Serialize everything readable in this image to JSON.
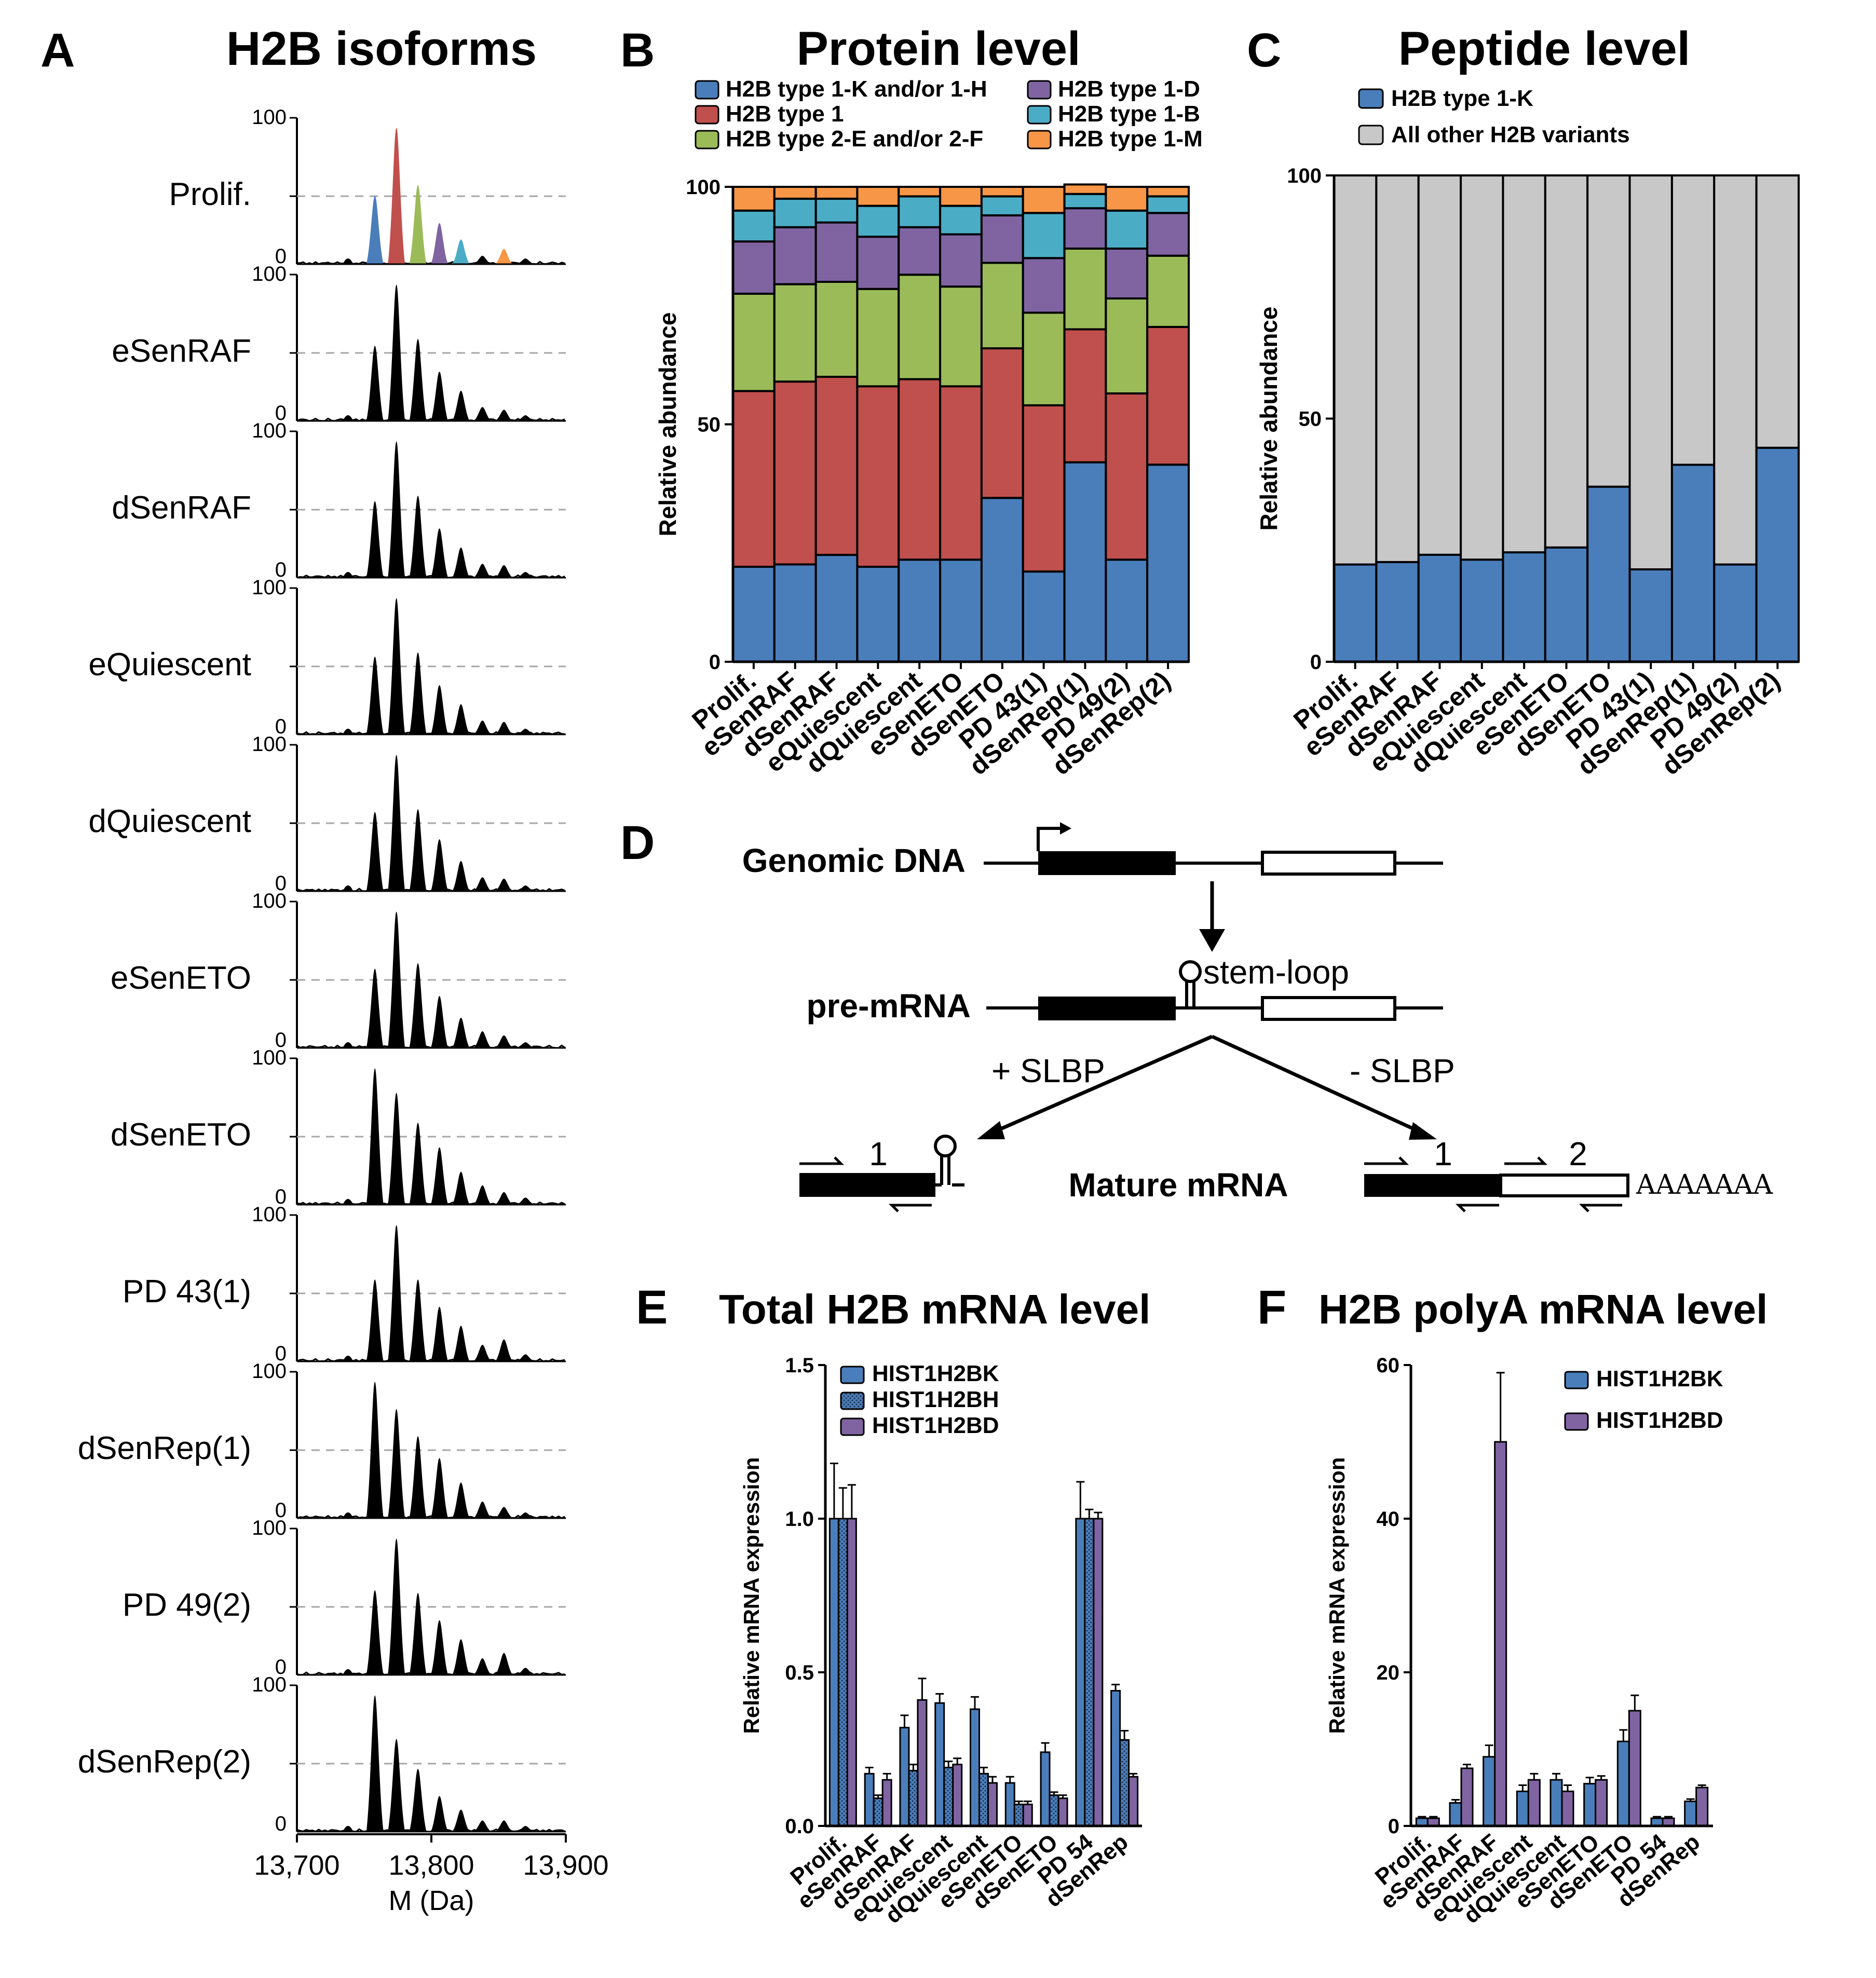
{
  "colors": {
    "blue": "#4a7ebb",
    "red": "#c0504d",
    "green": "#9bbb59",
    "purple": "#8064a2",
    "cyan": "#4bacc6",
    "orange": "#f79646",
    "gray": "#c8c8c8",
    "black": "#000000",
    "dash": "#a6a6a6"
  },
  "chart_data": [
    {
      "id": "A",
      "type": "line",
      "panel_label": "A",
      "title": "H2B isoforms",
      "xlabel": "M (Da)",
      "xlim": [
        13700,
        13900
      ],
      "xticks": [
        "13,700",
        "13,800",
        "13,900"
      ],
      "ytick_top": "100",
      "ytick_bottom": "0",
      "peak_masses": [
        13758,
        13774,
        13790,
        13806,
        13822,
        13838,
        13854,
        13870
      ],
      "peak_colors": [
        "blue",
        "red",
        "green",
        "purple",
        "cyan",
        "black",
        "orange",
        "black"
      ],
      "series": [
        {
          "name": "Prolif.",
          "colored": true,
          "heights": [
            50,
            100,
            58,
            30,
            18,
            6,
            11,
            4
          ]
        },
        {
          "name": "eSenRAF",
          "heights": [
            55,
            100,
            60,
            36,
            22,
            10,
            8,
            4
          ]
        },
        {
          "name": "dSenRAF",
          "heights": [
            56,
            100,
            60,
            36,
            22,
            10,
            9,
            4
          ]
        },
        {
          "name": "eQuiescent",
          "heights": [
            57,
            100,
            60,
            36,
            22,
            10,
            9,
            4
          ]
        },
        {
          "name": "dQuiescent",
          "heights": [
            58,
            100,
            60,
            38,
            22,
            10,
            9,
            4
          ]
        },
        {
          "name": "eSenETO",
          "heights": [
            58,
            100,
            62,
            38,
            22,
            12,
            9,
            4
          ]
        },
        {
          "name": "dSenETO",
          "heights": [
            100,
            82,
            60,
            42,
            24,
            14,
            9,
            5
          ]
        },
        {
          "name": "PD 43(1)",
          "heights": [
            60,
            100,
            60,
            40,
            26,
            12,
            16,
            5
          ]
        },
        {
          "name": "dSenRep(1)",
          "heights": [
            100,
            80,
            60,
            44,
            26,
            12,
            8,
            4
          ]
        },
        {
          "name": "PD 49(2)",
          "heights": [
            62,
            100,
            60,
            40,
            26,
            12,
            16,
            5
          ]
        },
        {
          "name": "dSenRep(2)",
          "heights": [
            100,
            68,
            46,
            26,
            16,
            8,
            8,
            4
          ]
        }
      ]
    },
    {
      "id": "B",
      "type": "bar",
      "stacked": true,
      "panel_label": "B",
      "title": "Protein level",
      "ylabel": "Relative abundance",
      "ylim": [
        0,
        100
      ],
      "yticks": [
        0,
        50,
        100
      ],
      "categories": [
        "Prolif.",
        "eSenRAF",
        "dSenRAF",
        "eQuiescent",
        "dQuiescent",
        "eSenETO",
        "dSenETO",
        "PD 43(1)",
        "dSenRep(1)",
        "PD 49(2)",
        "dSenRep(2)"
      ],
      "series": [
        {
          "name": "H2B type 1-K and/or 1-H",
          "color": "blue",
          "values": [
            20,
            20.5,
            22.5,
            20,
            21.5,
            21.5,
            34.5,
            19,
            42,
            21.5,
            41.5
          ]
        },
        {
          "name": "H2B type 1",
          "color": "red",
          "values": [
            37,
            38.5,
            37.5,
            38,
            38,
            36.5,
            31.5,
            35,
            28,
            35,
            29
          ]
        },
        {
          "name": "H2B type 2-E and/or 2-F",
          "color": "green",
          "values": [
            20.5,
            20.5,
            20,
            20.5,
            22,
            21,
            18,
            19.5,
            17,
            20,
            15
          ]
        },
        {
          "name": "H2B type 1-D",
          "color": "purple",
          "values": [
            11,
            12,
            12.5,
            11,
            10,
            11,
            10,
            11.5,
            8.5,
            10.5,
            9
          ]
        },
        {
          "name": "H2B type 1-B",
          "color": "cyan",
          "values": [
            6.5,
            6,
            5,
            6.5,
            6.5,
            6,
            4,
            9.5,
            3,
            8,
            3.5
          ]
        },
        {
          "name": "H2B type 1-M",
          "color": "orange",
          "values": [
            5,
            2.5,
            2.5,
            4,
            2,
            4,
            2,
            5.5,
            2,
            5,
            2
          ]
        }
      ],
      "legend": [
        {
          "name": "H2B type 1-K and/or 1-H",
          "color": "blue"
        },
        {
          "name": "H2B type 1-D",
          "color": "purple"
        },
        {
          "name": "H2B type 1",
          "color": "red"
        },
        {
          "name": "H2B type 1-B",
          "color": "cyan"
        },
        {
          "name": "H2B type 2-E and/or 2-F",
          "color": "green"
        },
        {
          "name": "H2B type 1-M",
          "color": "orange"
        }
      ]
    },
    {
      "id": "C",
      "type": "bar",
      "stacked": true,
      "panel_label": "C",
      "title": "Peptide level",
      "ylabel": "Relative abundance",
      "ylim": [
        0,
        100
      ],
      "yticks": [
        0,
        50,
        100
      ],
      "categories": [
        "Prolif.",
        "eSenRAF",
        "dSenRAF",
        "eQuiescent",
        "dQuiescent",
        "eSenETO",
        "dSenETO",
        "PD 43(1)",
        "dSenRep(1)",
        "PD 49(2)",
        "dSenRep(2)"
      ],
      "series": [
        {
          "name": "H2B type 1-K",
          "color": "blue",
          "values": [
            20,
            20.5,
            22,
            21,
            22.5,
            23.5,
            36,
            19,
            40.5,
            20,
            44
          ]
        },
        {
          "name": "All other H2B variants",
          "color": "gray",
          "values": [
            80,
            79.5,
            78,
            79,
            77.5,
            76.5,
            64,
            81,
            59.5,
            80,
            56
          ]
        }
      ]
    },
    {
      "id": "E",
      "type": "bar",
      "panel_label": "E",
      "title": "Total H2B mRNA level",
      "ylabel": "Relative mRNA expression",
      "ylim": [
        0,
        1.5
      ],
      "yticks": [
        "0.0",
        "0.5",
        "1.0",
        "1.5"
      ],
      "categories": [
        "Prolif.",
        "eSenRAF",
        "dSenRAF",
        "eQuiescent",
        "dQuiescent",
        "eSenETO",
        "dSenETO",
        "PD 54",
        "dSenRep"
      ],
      "series": [
        {
          "name": "HIST1H2BK",
          "color": "blue",
          "values": [
            1.0,
            0.17,
            0.32,
            0.4,
            0.38,
            0.14,
            0.24,
            1.0,
            0.44
          ]
        },
        {
          "name": "HIST1H2BH",
          "color": "blue",
          "pattern": true,
          "values": [
            1.0,
            0.09,
            0.18,
            0.19,
            0.17,
            0.07,
            0.1,
            1.0,
            0.28
          ]
        },
        {
          "name": "HIST1H2BD",
          "color": "purple",
          "values": [
            1.0,
            0.15,
            0.41,
            0.2,
            0.14,
            0.07,
            0.09,
            1.0,
            0.16
          ]
        }
      ],
      "errors": [
        [
          0.18,
          0.02,
          0.04,
          0.03,
          0.04,
          0.02,
          0.03,
          0.12,
          0.02
        ],
        [
          0.1,
          0.01,
          0.02,
          0.02,
          0.02,
          0.01,
          0.01,
          0.03,
          0.03
        ],
        [
          0.11,
          0.02,
          0.07,
          0.02,
          0.02,
          0.01,
          0.01,
          0.02,
          0.01
        ]
      ]
    },
    {
      "id": "F",
      "type": "bar",
      "panel_label": "F",
      "title": "H2B polyA mRNA level",
      "ylabel": "Relative mRNA expression",
      "ylim": [
        0,
        60
      ],
      "yticks": [
        "0",
        "20",
        "40",
        "60"
      ],
      "categories": [
        "Prolif.",
        "eSenRAF",
        "dSenRAF",
        "eQuiescent",
        "dQuiescent",
        "eSenETO",
        "dSenETO",
        "PD 54",
        "dSenRep"
      ],
      "series": [
        {
          "name": "HIST1H2BK",
          "color": "blue",
          "values": [
            1.0,
            3.0,
            9.0,
            4.5,
            6.0,
            5.5,
            11.0,
            1.0,
            3.2
          ]
        },
        {
          "name": "HIST1H2BD",
          "color": "purple",
          "values": [
            1.0,
            7.5,
            50.0,
            6.0,
            4.5,
            6.0,
            15.0,
            1.0,
            5.0
          ]
        }
      ],
      "errors": [
        [
          0.2,
          0.4,
          1.5,
          0.8,
          0.8,
          0.8,
          1.5,
          0.2,
          0.3
        ],
        [
          0.2,
          0.5,
          9.0,
          0.8,
          0.8,
          0.5,
          2.0,
          0.2,
          0.3
        ]
      ]
    }
  ],
  "diagram": {
    "panel_label": "D",
    "genomic_dna": "Genomic DNA",
    "pre_mrna": "pre-mRNA",
    "stem_loop": "stem-loop",
    "plus_slbp": "+ SLBP",
    "minus_slbp": "- SLBP",
    "mature_mrna": "Mature mRNA",
    "primer_1_left": "1",
    "primer_1_right": "1",
    "primer_2": "2",
    "poly_a": "AAAAAAA"
  }
}
